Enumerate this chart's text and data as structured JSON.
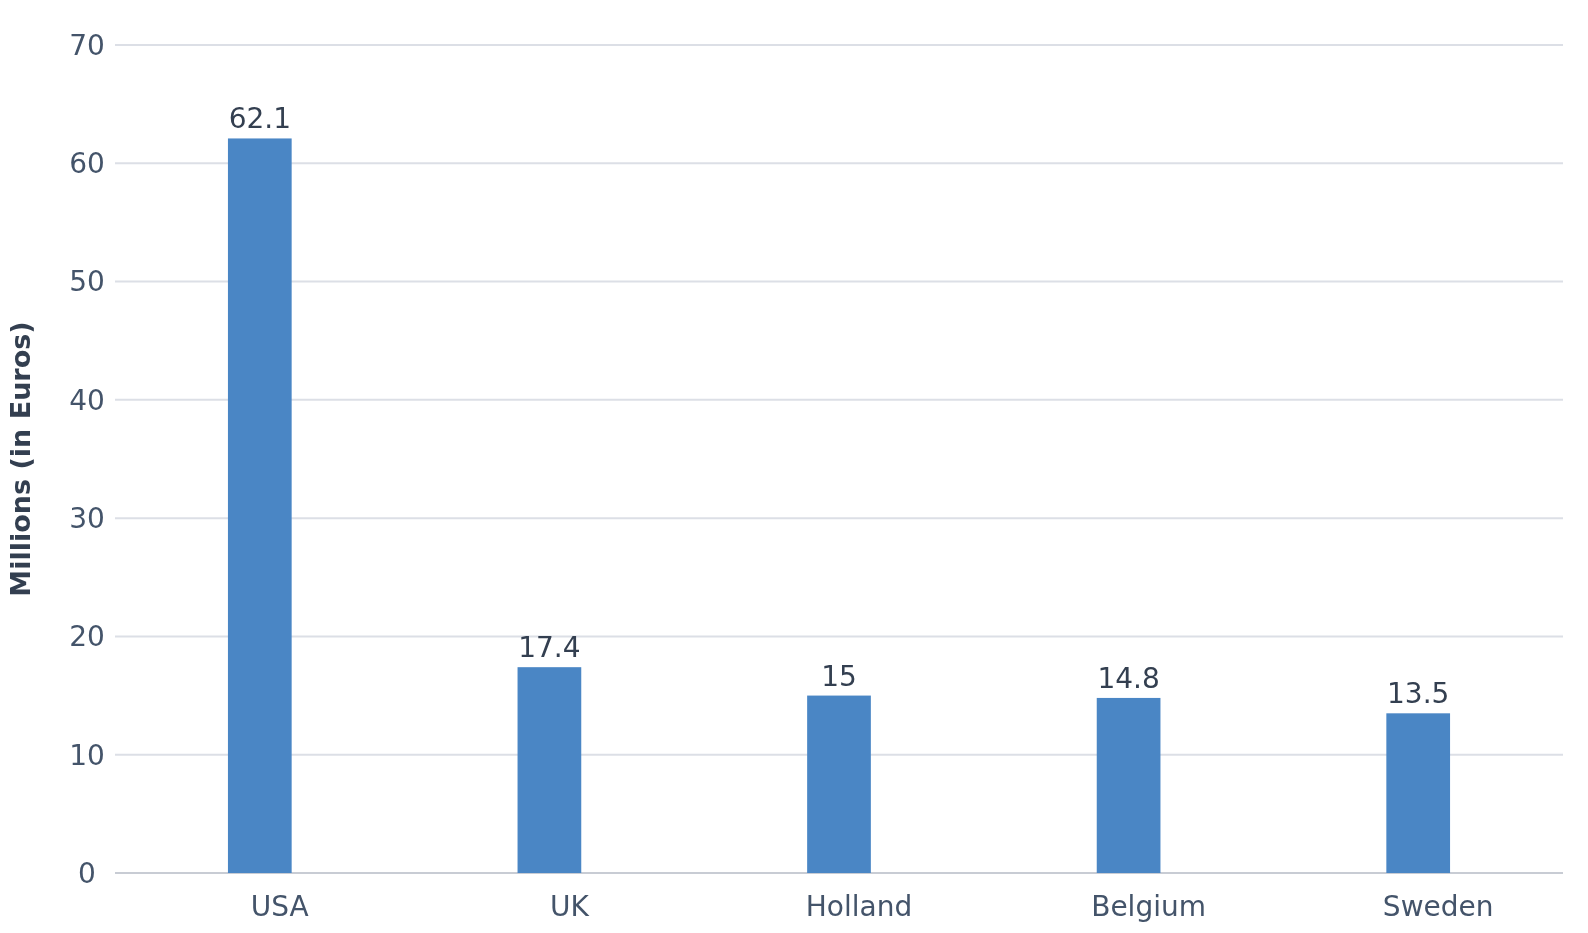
{
  "chart_data": {
    "type": "bar",
    "ylabel": "Millions (in Euros)",
    "categories": [
      "USA",
      "UK",
      "Holland",
      "Belgium",
      "Sweden"
    ],
    "values": [
      62.1,
      17.4,
      15,
      14.8,
      13.5
    ],
    "color": "#4a86c5",
    "ylim": [
      0,
      70
    ],
    "yticks": [
      0,
      10,
      20,
      30,
      40,
      50,
      60,
      70
    ],
    "grid": "y",
    "data_labels": true
  }
}
